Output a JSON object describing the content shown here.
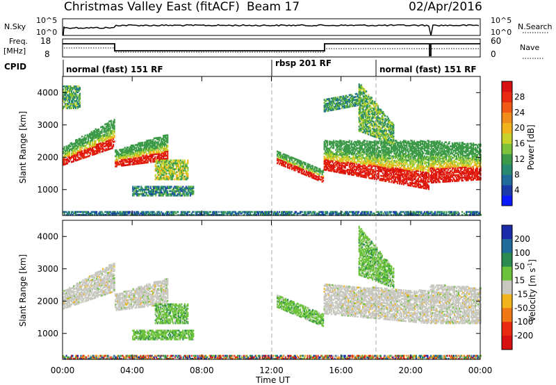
{
  "header": {
    "title": "Christmas Valley East (fitACF)",
    "beam": "Beam 17",
    "date": "02/Apr/2016"
  },
  "labels": {
    "nsky": "N.Sky",
    "nsearch": "N.Search",
    "freq_line1": "Freq.",
    "freq_line2": "[MHz]",
    "nave": "Nave",
    "cpid": "CPID",
    "xlabel": "Time UT",
    "ylabel_power": "Slant Range [km]",
    "ylabel_velocity": "Slant Range [km]",
    "cbar_power": "Power [dB]",
    "cbar_velocity_main": "Velocity [m s",
    "cbar_velocity_exp": "-1",
    "cbar_velocity_end": "]"
  },
  "noise_axis": {
    "left_top": "10^5",
    "left_bottom": "10^0",
    "right_top": "10^5",
    "right_bottom": "10^0"
  },
  "freq_axis": {
    "left_ticks": [
      "18",
      "8"
    ],
    "right_ticks": [
      "60",
      "0"
    ]
  },
  "cpid": [
    {
      "label": "normal (fast) 151 RF",
      "start": 0,
      "end": 12
    },
    {
      "label": "rbsp 201 RF",
      "start": 12,
      "end": 18
    },
    {
      "label": "normal (fast) 151 RF",
      "start": 18,
      "end": 24
    }
  ],
  "chart_data": [
    {
      "type": "heatmap",
      "name": "power",
      "ylabel": "Slant Range [km]",
      "xlim": [
        0,
        24
      ],
      "ylim": [
        200,
        4500
      ],
      "yticks": [
        1000,
        2000,
        3000,
        4000
      ],
      "colorbar": {
        "label": "Power [dB]",
        "range": [
          0,
          32
        ],
        "ticks": [
          4,
          8,
          12,
          16,
          20,
          24,
          28
        ],
        "colors": [
          "#0a1aff",
          "#1a3aa8",
          "#1f6b9a",
          "#2a8a70",
          "#3c9a48",
          "#7cc23a",
          "#c8d22a",
          "#f0b41a",
          "#f08c1a",
          "#f05a14",
          "#e82a10",
          "#d81010"
        ]
      },
      "regions": [
        {
          "t0": 0.0,
          "t1": 3.0,
          "r0": 1750,
          "r1": 2300,
          "r0_end": 2300,
          "r1_end": 3200,
          "level": 0.85
        },
        {
          "t0": 0.0,
          "t1": 1.0,
          "r0": 3500,
          "r1": 4200,
          "r0_end": 3500,
          "r1_end": 4200,
          "level": 0.45
        },
        {
          "t0": 3.0,
          "t1": 6.0,
          "r0": 1700,
          "r1": 2200,
          "r0_end": 1900,
          "r1_end": 2700,
          "level": 0.8
        },
        {
          "t0": 5.3,
          "t1": 7.2,
          "r0": 1300,
          "r1": 1900,
          "r0_end": 1300,
          "r1_end": 1900,
          "level": 0.6
        },
        {
          "t0": 4.0,
          "t1": 7.5,
          "r0": 800,
          "r1": 1100,
          "r0_end": 800,
          "r1_end": 1100,
          "level": 0.35
        },
        {
          "t0": 12.3,
          "t1": 15.0,
          "r0": 1800,
          "r1": 2200,
          "r0_end": 1200,
          "r1_end": 1600,
          "level": 0.85
        },
        {
          "t0": 15.0,
          "t1": 21.0,
          "r0": 1600,
          "r1": 2500,
          "r0_end": 1000,
          "r1_end": 2500,
          "level": 0.9
        },
        {
          "t0": 21.1,
          "t1": 24.0,
          "r0": 1200,
          "r1": 2500,
          "r0_end": 1300,
          "r1_end": 2400,
          "level": 0.85
        },
        {
          "t0": 15.0,
          "t1": 17.0,
          "r0": 3400,
          "r1": 3800,
          "r0_end": 3600,
          "r1_end": 4000,
          "level": 0.4
        },
        {
          "t0": 17.0,
          "t1": 19.0,
          "r0": 2800,
          "r1": 4300,
          "r0_end": 2400,
          "r1_end": 3000,
          "level": 0.5
        },
        {
          "t0": 0.0,
          "t1": 24.0,
          "r0": 200,
          "r1": 300,
          "r0_end": 200,
          "r1_end": 300,
          "level": 0.3
        }
      ]
    },
    {
      "type": "heatmap",
      "name": "velocity",
      "ylabel": "Slant Range [km]",
      "xlim": [
        0,
        24
      ],
      "ylim": [
        200,
        4500
      ],
      "yticks": [
        1000,
        2000,
        3000,
        4000
      ],
      "xticks": [
        "00:00",
        "04:00",
        "08:00",
        "12:00",
        "16:00",
        "20:00",
        "00:00"
      ],
      "xlabel": "Time UT",
      "colorbar": {
        "label": "Velocity [m s-1]",
        "ticks": [
          "200",
          "100",
          "50",
          "15",
          "-15",
          "-50",
          "-100",
          "-200"
        ],
        "colors": [
          "#1a2aa8",
          "#1f6b9a",
          "#2a8a50",
          "#6cc23a",
          "#c8c8c0",
          "#f0b41a",
          "#f07814",
          "#e82a10",
          "#d81010"
        ]
      },
      "regions": [
        {
          "t0": 0.0,
          "t1": 3.0,
          "r0": 1750,
          "r1": 2300,
          "r0_end": 2300,
          "r1_end": 3200,
          "cls": "gray"
        },
        {
          "t0": 3.0,
          "t1": 6.0,
          "r0": 1700,
          "r1": 2200,
          "r0_end": 1900,
          "r1_end": 2700,
          "cls": "gray"
        },
        {
          "t0": 5.3,
          "t1": 7.2,
          "r0": 1300,
          "r1": 1900,
          "r0_end": 1300,
          "r1_end": 1900,
          "cls": "green"
        },
        {
          "t0": 4.0,
          "t1": 7.5,
          "r0": 800,
          "r1": 1100,
          "r0_end": 800,
          "r1_end": 1100,
          "cls": "green"
        },
        {
          "t0": 12.3,
          "t1": 15.0,
          "r0": 1800,
          "r1": 2200,
          "r0_end": 1200,
          "r1_end": 1600,
          "cls": "green"
        },
        {
          "t0": 15.0,
          "t1": 21.0,
          "r0": 1600,
          "r1": 2500,
          "r0_end": 1300,
          "r1_end": 2300,
          "cls": "gray"
        },
        {
          "t0": 21.1,
          "t1": 24.0,
          "r0": 1300,
          "r1": 2500,
          "r0_end": 1300,
          "r1_end": 2400,
          "cls": "gray"
        },
        {
          "t0": 17.0,
          "t1": 19.0,
          "r0": 2800,
          "r1": 4300,
          "r0_end": 2400,
          "r1_end": 3000,
          "cls": "green"
        },
        {
          "t0": 0.0,
          "t1": 24.0,
          "r0": 200,
          "r1": 300,
          "r0_end": 200,
          "r1_end": 300,
          "cls": "mix"
        }
      ]
    }
  ]
}
